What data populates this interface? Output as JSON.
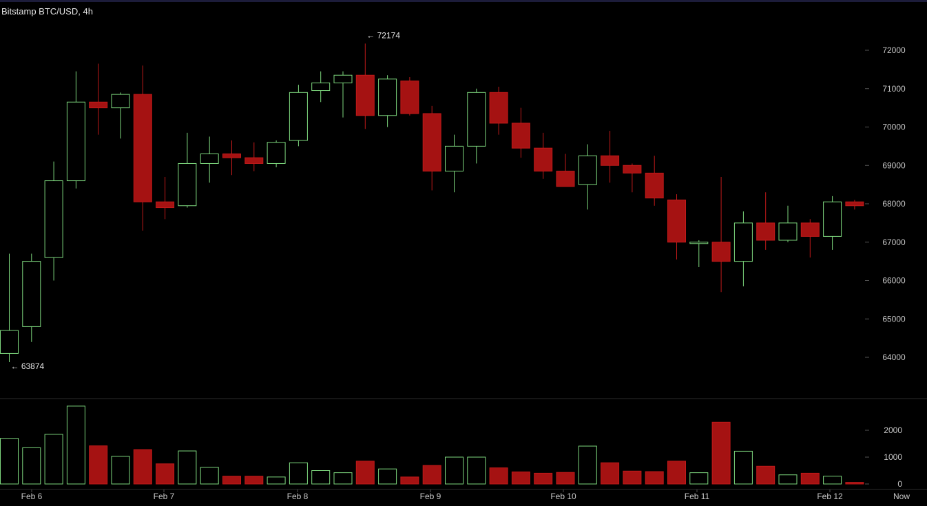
{
  "title": "Bitstamp BTC/USD, 4h",
  "colors": {
    "background": "#000000",
    "up": "#7ed87e",
    "down": "#a51212",
    "down_border": "#c01a1a",
    "text": "#e6e6e6",
    "axis_text": "#c8c8c8",
    "divider": "#2c2c2c"
  },
  "chart_data": {
    "type": "candlestick",
    "interval": "4h",
    "price_ylim": [
      63700,
      72350
    ],
    "y_ticks": [
      72000,
      71000,
      70000,
      69000,
      68000,
      67000,
      66000,
      65000,
      64000
    ],
    "volume_ylim": [
      0,
      3000
    ],
    "volume_ticks": [
      2000,
      1000,
      0
    ],
    "x_tick_labels": [
      "Feb 6",
      "Feb 7",
      "Feb 8",
      "Feb 9",
      "Feb 10",
      "Feb 11",
      "Feb 12",
      "Now"
    ],
    "annotations": [
      {
        "text": "← 72174",
        "value": 72174
      },
      {
        "text": "← 63874",
        "value": 63874
      }
    ],
    "candles": [
      {
        "o": 64100,
        "h": 66700,
        "l": 63874,
        "c": 64700,
        "v": 1700
      },
      {
        "o": 64800,
        "h": 66700,
        "l": 64400,
        "c": 66500,
        "v": 1350
      },
      {
        "o": 66600,
        "h": 69100,
        "l": 66000,
        "c": 68600,
        "v": 1850
      },
      {
        "o": 68600,
        "h": 71450,
        "l": 68400,
        "c": 70650,
        "v": 2900
      },
      {
        "o": 70650,
        "h": 71650,
        "l": 69800,
        "c": 70500,
        "v": 1420
      },
      {
        "o": 70500,
        "h": 70900,
        "l": 69700,
        "c": 70850,
        "v": 1030
      },
      {
        "o": 70850,
        "h": 71600,
        "l": 67300,
        "c": 68050,
        "v": 1280
      },
      {
        "o": 68050,
        "h": 68700,
        "l": 67600,
        "c": 67900,
        "v": 750
      },
      {
        "o": 67950,
        "h": 69850,
        "l": 67900,
        "c": 69050,
        "v": 1230
      },
      {
        "o": 69050,
        "h": 69750,
        "l": 68550,
        "c": 69300,
        "v": 620
      },
      {
        "o": 69300,
        "h": 69650,
        "l": 68750,
        "c": 69200,
        "v": 290
      },
      {
        "o": 69200,
        "h": 69600,
        "l": 68850,
        "c": 69050,
        "v": 290
      },
      {
        "o": 69050,
        "h": 69650,
        "l": 68950,
        "c": 69600,
        "v": 260
      },
      {
        "o": 69650,
        "h": 71100,
        "l": 69500,
        "c": 70900,
        "v": 790
      },
      {
        "o": 70950,
        "h": 71450,
        "l": 70650,
        "c": 71150,
        "v": 500
      },
      {
        "o": 71150,
        "h": 71450,
        "l": 70250,
        "c": 71350,
        "v": 420
      },
      {
        "o": 71350,
        "h": 72174,
        "l": 69950,
        "c": 70300,
        "v": 850
      },
      {
        "o": 70300,
        "h": 71350,
        "l": 70000,
        "c": 71250,
        "v": 560
      },
      {
        "o": 71200,
        "h": 71300,
        "l": 70300,
        "c": 70350,
        "v": 260
      },
      {
        "o": 70350,
        "h": 70550,
        "l": 68350,
        "c": 68850,
        "v": 690
      },
      {
        "o": 68850,
        "h": 69800,
        "l": 68300,
        "c": 69500,
        "v": 1000
      },
      {
        "o": 69500,
        "h": 71000,
        "l": 69050,
        "c": 70900,
        "v": 1000
      },
      {
        "o": 70900,
        "h": 71050,
        "l": 69800,
        "c": 70100,
        "v": 600
      },
      {
        "o": 70100,
        "h": 70500,
        "l": 69200,
        "c": 69450,
        "v": 450
      },
      {
        "o": 69450,
        "h": 69850,
        "l": 68650,
        "c": 68850,
        "v": 400
      },
      {
        "o": 68850,
        "h": 69300,
        "l": 68450,
        "c": 68450,
        "v": 430
      },
      {
        "o": 68500,
        "h": 69550,
        "l": 67850,
        "c": 69250,
        "v": 1410
      },
      {
        "o": 69250,
        "h": 69900,
        "l": 68550,
        "c": 69000,
        "v": 790
      },
      {
        "o": 69000,
        "h": 69050,
        "l": 68300,
        "c": 68800,
        "v": 480
      },
      {
        "o": 68800,
        "h": 69250,
        "l": 67950,
        "c": 68150,
        "v": 460
      },
      {
        "o": 68100,
        "h": 68250,
        "l": 66550,
        "c": 67000,
        "v": 850
      },
      {
        "o": 67000,
        "h": 67050,
        "l": 66350,
        "c": 67000,
        "v": 420
      },
      {
        "o": 67000,
        "h": 68700,
        "l": 65700,
        "c": 66500,
        "v": 2300
      },
      {
        "o": 66500,
        "h": 67800,
        "l": 65850,
        "c": 67500,
        "v": 1220
      },
      {
        "o": 67500,
        "h": 68300,
        "l": 66800,
        "c": 67050,
        "v": 660
      },
      {
        "o": 67050,
        "h": 67950,
        "l": 67000,
        "c": 67500,
        "v": 340
      },
      {
        "o": 67500,
        "h": 67600,
        "l": 66600,
        "c": 67150,
        "v": 400
      },
      {
        "o": 67150,
        "h": 68200,
        "l": 66800,
        "c": 68050,
        "v": 290
      },
      {
        "o": 68050,
        "h": 68100,
        "l": 67850,
        "c": 67950,
        "v": 60
      }
    ]
  }
}
